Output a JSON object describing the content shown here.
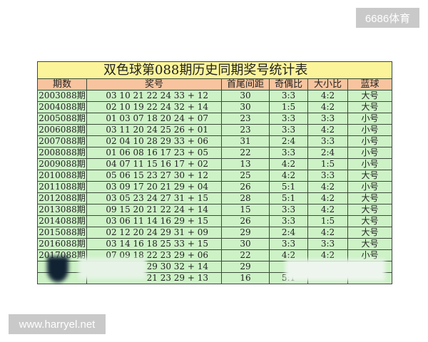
{
  "watermarks": {
    "top_right": "6686体育",
    "bottom_left": "www.harryel.net"
  },
  "table": {
    "title": "双色球第088期历史同期奖号统计表",
    "headers": [
      "期数",
      "奖号",
      "首尾间距",
      "奇偶比",
      "大小比",
      "蓝球"
    ],
    "rows": [
      [
        "2003088期",
        "03 10 21 22 24 33 + 12",
        "30",
        "3:3",
        "4:2",
        "大号"
      ],
      [
        "2004088期",
        "02 10 19 22 24 32 + 14",
        "30",
        "1:5",
        "4:2",
        "大号"
      ],
      [
        "2005088期",
        "01 03 07 18 20 24 + 07",
        "23",
        "3:3",
        "3:3",
        "小号"
      ],
      [
        "2006088期",
        "03 11 20 24 25 26 + 01",
        "23",
        "3:3",
        "4:2",
        "小号"
      ],
      [
        "2007088期",
        "02 04 10 28 29 33 + 06",
        "31",
        "2:4",
        "3:3",
        "小号"
      ],
      [
        "2008088期",
        "01 06 08 16 17 23 + 05",
        "22",
        "3:3",
        "2:4",
        "小号"
      ],
      [
        "2009088期",
        "04 07 11 15 16 17 + 02",
        "13",
        "4:2",
        "1:5",
        "小号"
      ],
      [
        "2010088期",
        "05 06 15 23 27 30 + 12",
        "25",
        "4:2",
        "3:3",
        "大号"
      ],
      [
        "2011088期",
        "03 09 17 20 21 29 + 04",
        "26",
        "5:1",
        "4:2",
        "小号"
      ],
      [
        "2012088期",
        "03 05 23 24 27 31 + 15",
        "28",
        "5:1",
        "4:2",
        "大号"
      ],
      [
        "2013088期",
        "09 15 20 21 22 24 + 14",
        "15",
        "3:3",
        "4:2",
        "大号"
      ],
      [
        "2014088期",
        "03 06 11 14 16 29 + 15",
        "26",
        "3:3",
        "1:5",
        "大号"
      ],
      [
        "2015088期",
        "02 12 20 24 29 31 + 09",
        "29",
        "2:4",
        "4:2",
        "大号"
      ],
      [
        "2016088期",
        "03 14 16 18 25 33 + 15",
        "30",
        "3:3",
        "3:3",
        "大号"
      ],
      [
        "2017088期",
        "07 09 18 22 23 29 + 06",
        "22",
        "4:2",
        "4:2",
        "小号"
      ],
      [
        "",
        "29 30 32 + 14",
        "29",
        "",
        "",
        ""
      ],
      [
        "",
        "21 23 29 + 13",
        "16",
        "5:1",
        "",
        ""
      ]
    ]
  }
}
